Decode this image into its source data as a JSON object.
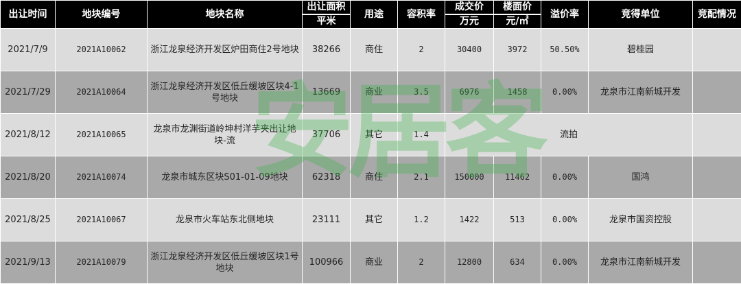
{
  "headers": [
    {
      "label": "出让时间"
    },
    {
      "label": "地块编号"
    },
    {
      "label": "地块名称"
    },
    {
      "label": "出让面积",
      "unit": "平米"
    },
    {
      "label": "用途"
    },
    {
      "label": "容积率"
    },
    {
      "label": "成交价",
      "unit": "万元"
    },
    {
      "label": "楼面价",
      "unit": "元/㎡"
    },
    {
      "label": "溢价率"
    },
    {
      "label": "竞得单位"
    },
    {
      "label": "竞配情况"
    }
  ],
  "rows": [
    {
      "date": "2021/7/9",
      "code": "2021A10062",
      "name": "浙江龙泉经济开发区炉田商住2号地块",
      "area": "38266",
      "use": "商住",
      "far": "2",
      "price": "30400",
      "unit_price": "3972",
      "premium": "50.50%",
      "winner": "碧桂园",
      "bidding": ""
    },
    {
      "date": "2021/7/29",
      "code": "2021A10064",
      "name": "浙江龙泉经济开发区低丘缓坡区块4-1号地块",
      "area": "13669",
      "use": "商业",
      "far": "3.5",
      "price": "6976",
      "unit_price": "1458",
      "premium": "0.00%",
      "winner": "龙泉市江南新城开发",
      "bidding": ""
    },
    {
      "date": "2021/8/12",
      "code": "2021A10065",
      "name": "龙泉市龙渊街道岭坤村洋芋夹出让地块-流",
      "area": "37706",
      "use": "其它",
      "far": "1.4",
      "merged": "流拍",
      "bidding": ""
    },
    {
      "date": "2021/8/20",
      "code": "2021A10074",
      "name": "龙泉市城东区块S01-01-09地块",
      "area": "62318",
      "use": "商住",
      "far": "2.1",
      "price": "150000",
      "unit_price": "11462",
      "premium": "0.00%",
      "winner": "国鸿",
      "bidding": ""
    },
    {
      "date": "2021/8/25",
      "code": "2021A10067",
      "name": "龙泉市火车站东北侧地块",
      "area": "23111",
      "use": "其它",
      "far": "1.2",
      "price": "1422",
      "unit_price": "513",
      "premium": "0.00%",
      "winner": "龙泉市国资控股",
      "bidding": ""
    },
    {
      "date": "2021/9/13",
      "code": "2021A10079",
      "name": "浙江龙泉经济开发区低丘缓坡区块1号地块",
      "area": "100966",
      "use": "商业",
      "far": "2",
      "price": "12800",
      "unit_price": "634",
      "premium": "0.00%",
      "winner": "龙泉市江南新城开发",
      "bidding": ""
    }
  ],
  "watermark": "安居客",
  "colors": {
    "header_bg": "#000000",
    "row_light": "#dcdcdc",
    "row_dark": "#a9a9a9",
    "watermark": "#3fb44a"
  }
}
